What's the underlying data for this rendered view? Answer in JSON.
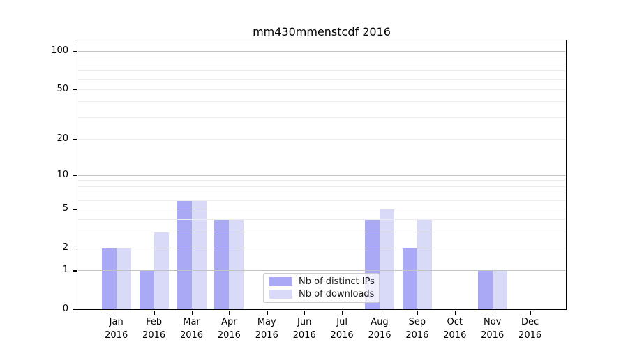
{
  "title": "mm430mmenstcdf 2016",
  "colors": {
    "distinct_ips": "#a9a9f5",
    "downloads": "#d9d9f8",
    "grid_major": "#c3c3c3",
    "grid_minor": "#ececec",
    "axis": "#000000",
    "background": "#ffffff",
    "legend_border": "#cccccc"
  },
  "legend": {
    "items": [
      {
        "label": "Nb of distinct IPs",
        "color_key": "distinct_ips"
      },
      {
        "label": "Nb of downloads",
        "color_key": "downloads"
      }
    ]
  },
  "chart_data": {
    "type": "bar",
    "title": "mm430mmenstcdf 2016",
    "categories": [
      "Jan 2016",
      "Feb 2016",
      "Mar 2016",
      "Apr 2016",
      "May 2016",
      "Jun 2016",
      "Jul 2016",
      "Aug 2016",
      "Sep 2016",
      "Oct 2016",
      "Nov 2016",
      "Dec 2016"
    ],
    "series": [
      {
        "name": "Nb of distinct IPs",
        "color_key": "distinct_ips",
        "values": [
          2,
          1,
          6,
          4,
          0,
          0,
          0,
          4,
          2,
          0,
          1,
          0
        ]
      },
      {
        "name": "Nb of downloads",
        "color_key": "downloads",
        "values": [
          2,
          3,
          6,
          4,
          0,
          0,
          0,
          5,
          4,
          0,
          1,
          0
        ]
      }
    ],
    "y_scale": "log1p",
    "y_ticks_labeled": [
      0,
      1,
      2,
      5,
      10,
      20,
      50,
      100
    ],
    "y_grid_major": [
      1,
      10,
      100
    ],
    "y_grid_minor": [
      2,
      3,
      4,
      5,
      6,
      7,
      8,
      9,
      20,
      30,
      40,
      50,
      60,
      70,
      80,
      90
    ],
    "ylim": [
      0,
      121
    ],
    "xlabel": "",
    "ylabel": "",
    "grid": true,
    "legend_position": "lower-center-inside"
  }
}
